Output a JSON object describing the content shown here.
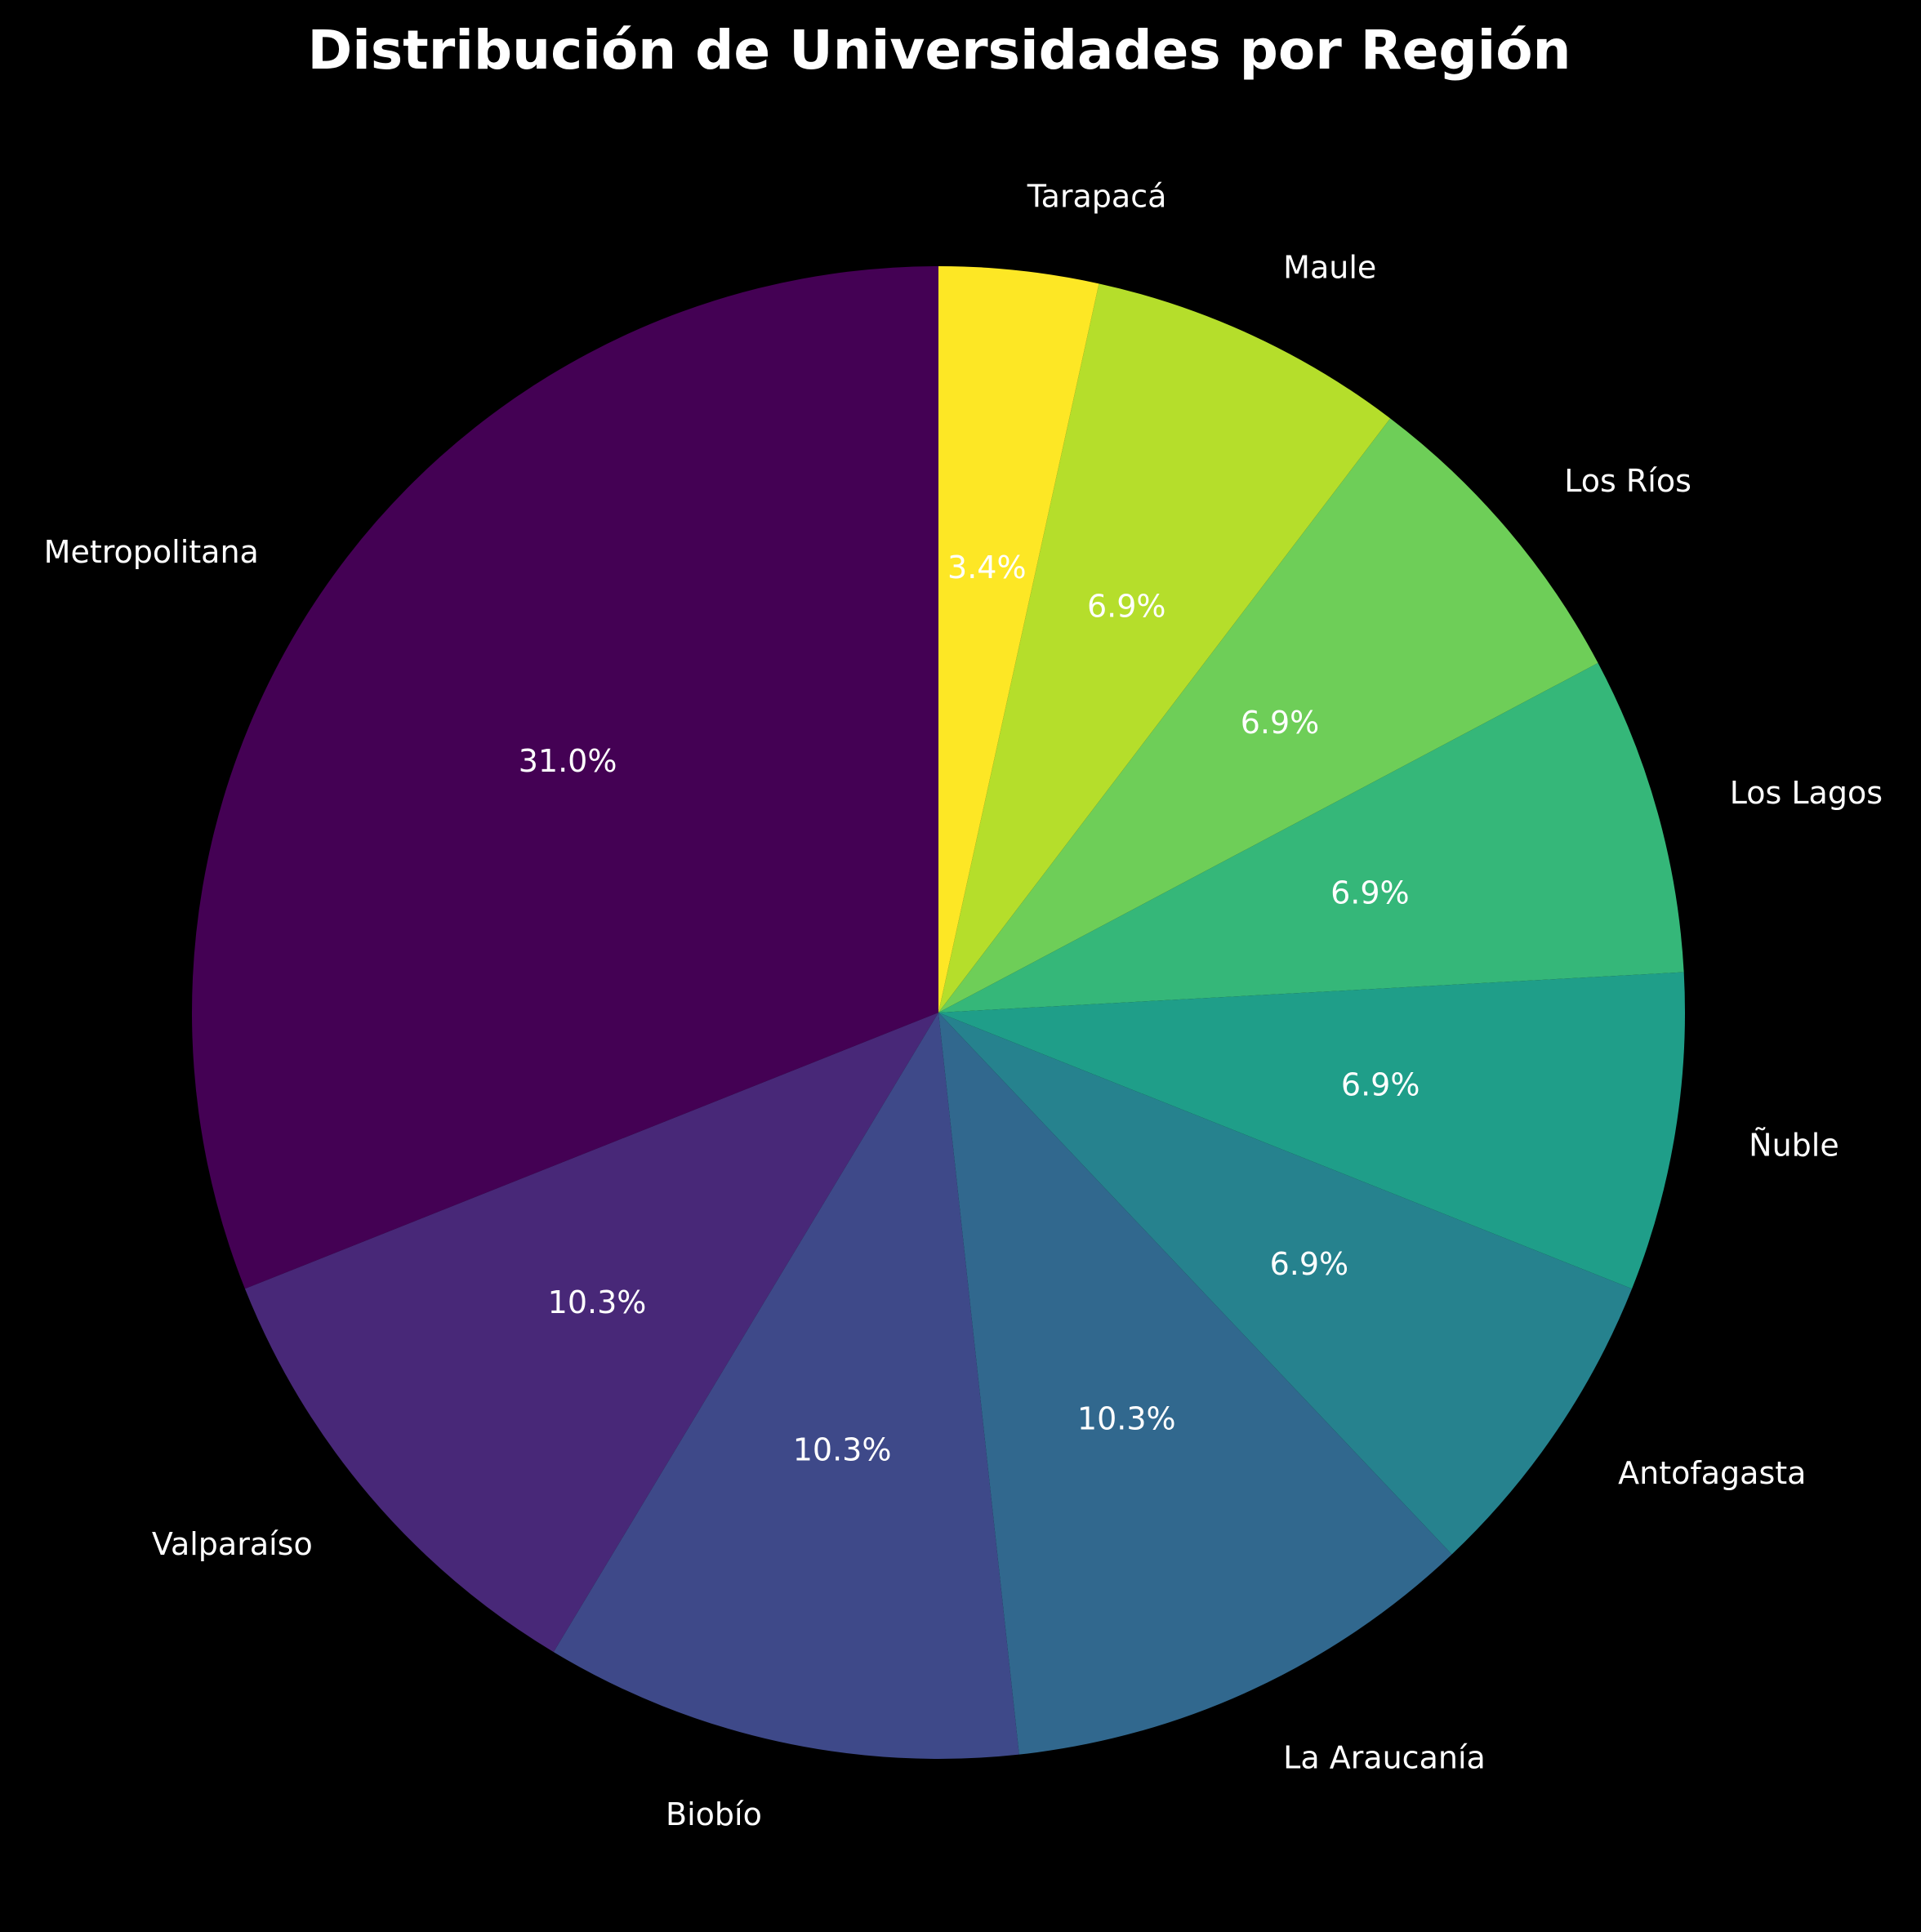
{
  "chart_data": {
    "type": "pie",
    "title": "Distribución de Universidades por Región",
    "categories": [
      "Metropolitana",
      "Valparaíso",
      "Biobío",
      "La Araucanía",
      "Antofagasta",
      "Ñuble",
      "Los Lagos",
      "Los Ríos",
      "Maule",
      "Tarapacá"
    ],
    "values": [
      9,
      3,
      3,
      3,
      2,
      2,
      2,
      2,
      2,
      1
    ],
    "percent_labels": [
      "31.0%",
      "10.3%",
      "10.3%",
      "10.3%",
      "6.9%",
      "6.9%",
      "6.9%",
      "6.9%",
      "6.9%",
      "3.4%"
    ],
    "colors": [
      "#440154",
      "#482878",
      "#3e4989",
      "#31688e",
      "#26828e",
      "#1f9e89",
      "#35b779",
      "#6ece58",
      "#b5de2b",
      "#fde725"
    ],
    "start_angle_deg": 90,
    "direction": "counterclockwise",
    "legend": "none",
    "background": "#000000"
  }
}
